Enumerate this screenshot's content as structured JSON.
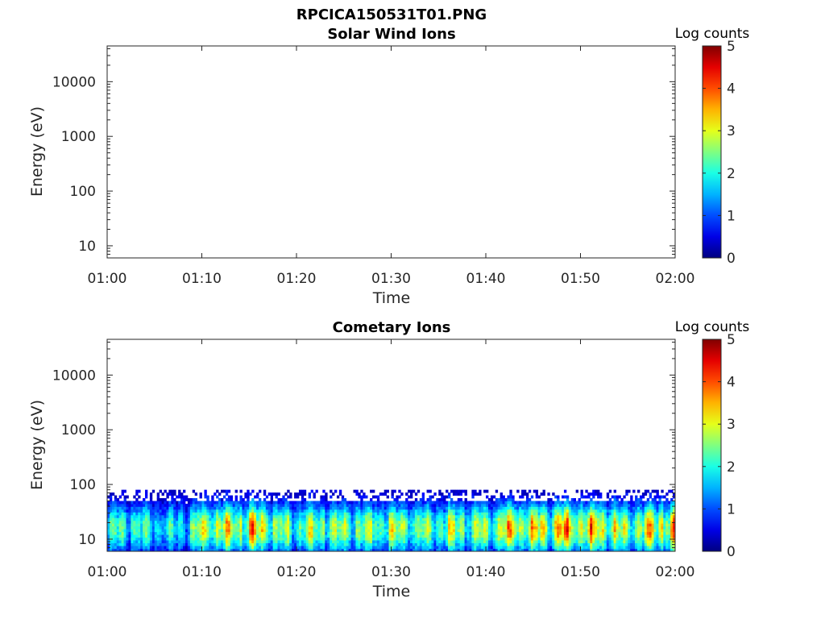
{
  "figure": {
    "title": "RPCICA150531T01.PNG"
  },
  "chart_data": [
    {
      "type": "heatmap",
      "title": "Solar Wind Ions",
      "xlabel": "Time",
      "ylabel": "Energy (eV)",
      "x_ticks": [
        "01:00",
        "01:10",
        "01:20",
        "01:30",
        "01:40",
        "01:50",
        "02:00"
      ],
      "y_ticks": [
        "10",
        "100",
        "1000",
        "10000"
      ],
      "y_tick_values": [
        10,
        100,
        1000,
        10000
      ],
      "y_scale": "log",
      "ylim": [
        6,
        45000
      ],
      "xlim_minutes": [
        0,
        60
      ],
      "colorbar": {
        "label": "Log counts",
        "ticks": [
          "0",
          "1",
          "2",
          "3",
          "4",
          "5"
        ],
        "range": [
          0,
          5
        ],
        "colormap": "jet"
      },
      "data_note": "",
      "columns": []
    },
    {
      "type": "heatmap",
      "title": "Cometary Ions",
      "xlabel": "Time",
      "ylabel": "Energy (eV)",
      "x_ticks": [
        "01:00",
        "01:10",
        "01:20",
        "01:30",
        "01:40",
        "01:50",
        "02:00"
      ],
      "y_ticks": [
        "10",
        "100",
        "1000",
        "10000"
      ],
      "y_tick_values": [
        10,
        100,
        1000,
        10000
      ],
      "y_scale": "log",
      "ylim": [
        6,
        45000
      ],
      "xlim_minutes": [
        0,
        60
      ],
      "colorbar": {
        "label": "Log counts",
        "ticks": [
          "0",
          "1",
          "2",
          "3",
          "4",
          "5"
        ],
        "range": [
          0,
          5
        ],
        "colormap": "jet"
      },
      "energy_range_ev": [
        6,
        80
      ],
      "intensity_profile_log_counts": [
        {
          "minute": 0,
          "peak": 2.0
        },
        {
          "minute": 2,
          "peak": 2.6
        },
        {
          "minute": 4,
          "peak": 2.2
        },
        {
          "minute": 6,
          "peak": 1.8
        },
        {
          "minute": 8,
          "peak": 2.2
        },
        {
          "minute": 10,
          "peak": 3.0
        },
        {
          "minute": 12,
          "peak": 3.2
        },
        {
          "minute": 14,
          "peak": 3.1
        },
        {
          "minute": 15,
          "peak": 3.6
        },
        {
          "minute": 17,
          "peak": 2.9
        },
        {
          "minute": 19,
          "peak": 2.6
        },
        {
          "minute": 21,
          "peak": 2.5
        },
        {
          "minute": 23,
          "peak": 3.1
        },
        {
          "minute": 25,
          "peak": 2.8
        },
        {
          "minute": 27,
          "peak": 2.6
        },
        {
          "minute": 29,
          "peak": 3.0
        },
        {
          "minute": 31,
          "peak": 2.9
        },
        {
          "minute": 33,
          "peak": 2.6
        },
        {
          "minute": 35,
          "peak": 2.7
        },
        {
          "minute": 37,
          "peak": 2.9
        },
        {
          "minute": 39,
          "peak": 2.6
        },
        {
          "minute": 41,
          "peak": 3.0
        },
        {
          "minute": 43,
          "peak": 3.3
        },
        {
          "minute": 45,
          "peak": 3.2
        },
        {
          "minute": 47,
          "peak": 3.4
        },
        {
          "minute": 49,
          "peak": 3.6
        },
        {
          "minute": 51,
          "peak": 3.4
        },
        {
          "minute": 53,
          "peak": 3.1
        },
        {
          "minute": 55,
          "peak": 3.0
        },
        {
          "minute": 57,
          "peak": 3.2
        },
        {
          "minute": 59,
          "peak": 3.6
        },
        {
          "minute": 60,
          "peak": 3.3
        }
      ]
    }
  ]
}
